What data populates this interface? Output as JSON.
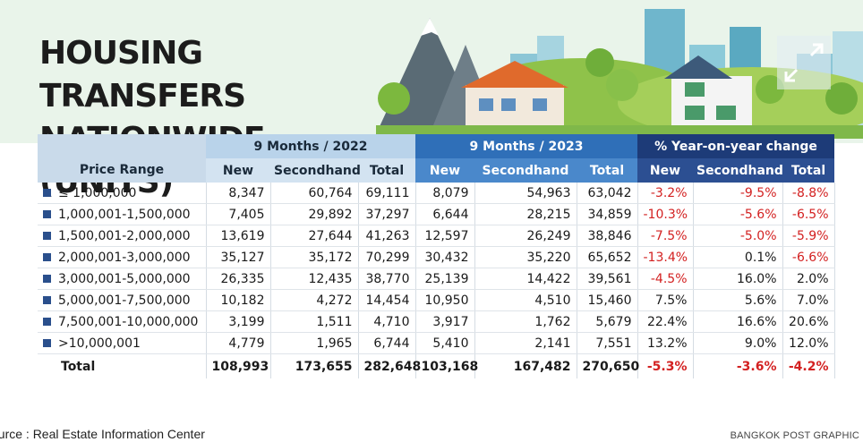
{
  "title": {
    "line1": "HOUSING TRANSFERS",
    "line2": "NATIONWIDE (UNITS)"
  },
  "table": {
    "range_header": "Price Range",
    "groups": [
      "9 Months / 2022",
      "9 Months / 2023",
      "% Year-on-year change"
    ],
    "subheaders": [
      "New",
      "Secondhand",
      "Total",
      "New",
      "Secondhand",
      "Total",
      "New",
      "Secondhand",
      "Total"
    ],
    "rows": [
      {
        "range": "≤ 1,000,000",
        "v": [
          "8,347",
          "60,764",
          "69,111",
          "8,079",
          "54,963",
          "63,042",
          "-3.2%",
          "-9.5%",
          "-8.8%"
        ]
      },
      {
        "range": "1,000,001-1,500,000",
        "v": [
          "7,405",
          "29,892",
          "37,297",
          "6,644",
          "28,215",
          "34,859",
          "-10.3%",
          "-5.6%",
          "-6.5%"
        ]
      },
      {
        "range": "1,500,001-2,000,000",
        "v": [
          "13,619",
          "27,644",
          "41,263",
          "12,597",
          "26,249",
          "38,846",
          "-7.5%",
          "-5.0%",
          "-5.9%"
        ]
      },
      {
        "range": "2,000,001-3,000,000",
        "v": [
          "35,127",
          "35,172",
          "70,299",
          "30,432",
          "35,220",
          "65,652",
          "-13.4%",
          "0.1%",
          "-6.6%"
        ]
      },
      {
        "range": "3,000,001-5,000,000",
        "v": [
          "26,335",
          "12,435",
          "38,770",
          "25,139",
          "14,422",
          "39,561",
          "-4.5%",
          "16.0%",
          "2.0%"
        ]
      },
      {
        "range": "5,000,001-7,500,000",
        "v": [
          "10,182",
          "4,272",
          "14,454",
          "10,950",
          "4,510",
          "15,460",
          "7.5%",
          "5.6%",
          "7.0%"
        ]
      },
      {
        "range": "7,500,001-10,000,000",
        "v": [
          "3,199",
          "1,511",
          "4,710",
          "3,917",
          "1,762",
          "5,679",
          "22.4%",
          "16.6%",
          "20.6%"
        ]
      },
      {
        "range": ">10,000,001",
        "v": [
          "4,779",
          "1,965",
          "6,744",
          "5,410",
          "2,141",
          "7,551",
          "13.2%",
          "9.0%",
          "12.0%"
        ]
      }
    ],
    "total": {
      "label": "Total",
      "v": [
        "108,993",
        "173,655",
        "282,648",
        "103,168",
        "167,482",
        "270,650",
        "-5.3%",
        "-3.6%",
        "-4.2%"
      ]
    }
  },
  "footer": {
    "source": "ource : Real Estate Information Center",
    "credit": "BANGKOK POST GRAPHIC"
  },
  "colors": {
    "negative": "#d32121",
    "header_2022": "#b9d3ea",
    "header_2023": "#2f6fb8",
    "header_yoy": "#1d3b78",
    "background_band": "#e9f4ea"
  },
  "icons": [
    "expand-icon",
    "bullet-square-icon"
  ]
}
